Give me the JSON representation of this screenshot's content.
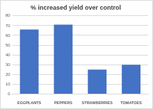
{
  "chart_data": {
    "type": "bar",
    "title": "% increased yield over control",
    "categories": [
      "EGGPLANTS",
      "PEPPERS",
      "STRAWBERRIES",
      "TOMATOES"
    ],
    "values": [
      66,
      71,
      25,
      30
    ],
    "color": "#4472c4",
    "ylim": [
      0,
      80
    ],
    "yticks": [
      0,
      10,
      20,
      30,
      40,
      50,
      60,
      70,
      80
    ],
    "grid": true
  }
}
